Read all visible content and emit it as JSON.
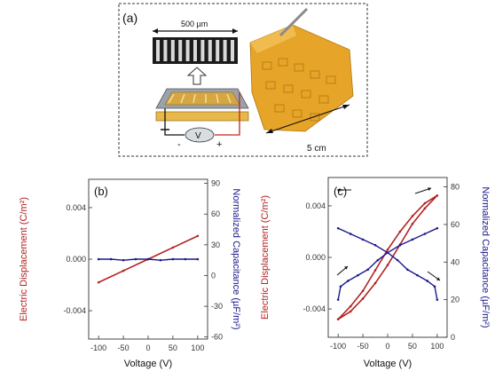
{
  "panel_a": {
    "label": "(a)",
    "scale_bar": "500 µm",
    "voltage_symbol": "V",
    "minus": "-",
    "plus": "+",
    "size_bar": "5 cm"
  },
  "colors": {
    "displacement": "#b22222",
    "capacitance": "#1a1a8c",
    "axis": "#333333"
  },
  "chart_data": [
    {
      "type": "line",
      "panel_label": "(b)",
      "xlabel": "Voltage (V)",
      "ylabel_left": "Electric Displacement (C/m²)",
      "ylabel_right": "Normalized Capacitance (µF/m²)",
      "xlim": [
        -120,
        120
      ],
      "ylim_left": [
        -0.0062,
        0.0062
      ],
      "ylim_right": [
        -62,
        94
      ],
      "x_ticks": [
        "-100",
        "-50",
        "0",
        "50",
        "100"
      ],
      "y_ticks_left": [
        "0.004",
        "0.000",
        "-0.004"
      ],
      "y_ticks_right": [
        "90",
        "60",
        "30",
        "0",
        "-30",
        "-60"
      ],
      "series": [
        {
          "axis": "left",
          "color": "#b22222",
          "x": [
            -100,
            -50,
            0,
            50,
            100
          ],
          "y": [
            -0.0018,
            -0.0009,
            0.0,
            0.0009,
            0.0018
          ]
        },
        {
          "axis": "right",
          "color": "#1a1a8c",
          "x": [
            -100,
            -75,
            -50,
            -25,
            0,
            25,
            50,
            75,
            100
          ],
          "y": [
            16,
            16,
            15,
            16,
            16,
            15,
            16,
            16,
            16
          ]
        }
      ]
    },
    {
      "type": "line",
      "panel_label": "(c)",
      "xlabel": "Voltage (V)",
      "ylabel_left": "Electric Displacement (C/m²)",
      "ylabel_right": "Normalized Capacitance (µF/m²)",
      "xlim": [
        -120,
        120
      ],
      "ylim_left": [
        -0.0062,
        0.0062
      ],
      "ylim_right": [
        0,
        85
      ],
      "x_ticks": [
        "-100",
        "-50",
        "0",
        "50",
        "100"
      ],
      "y_ticks_left": [
        "0.004",
        "0.000",
        "-0.004"
      ],
      "y_ticks_right": [
        "80",
        "60",
        "40",
        "20",
        "0"
      ],
      "series": [
        {
          "axis": "left",
          "color": "#b22222",
          "x": [
            -100,
            -75,
            -50,
            -25,
            0,
            25,
            50,
            75,
            100,
            75,
            50,
            25,
            0,
            -25,
            -50,
            -75,
            -100
          ],
          "y": [
            -0.0048,
            -0.0042,
            -0.0032,
            -0.002,
            -0.0006,
            0.001,
            0.0026,
            0.0038,
            0.0048,
            0.0042,
            0.0032,
            0.002,
            0.0006,
            -0.001,
            -0.0026,
            -0.0038,
            -0.0048
          ]
        },
        {
          "axis": "right",
          "color": "#1a1a8c",
          "x": [
            -100,
            -75,
            -50,
            -25,
            0,
            20,
            40,
            60,
            80,
            95,
            100
          ],
          "y": [
            58,
            55,
            52,
            49,
            45,
            41,
            36,
            33,
            30,
            27,
            20
          ]
        },
        {
          "axis": "right",
          "color": "#1a1a8c",
          "x": [
            -100,
            -95,
            -80,
            -60,
            -40,
            -20,
            0,
            25,
            50,
            75,
            100
          ],
          "y": [
            20,
            27,
            30,
            33,
            36,
            41,
            45,
            49,
            52,
            55,
            58
          ]
        }
      ]
    }
  ]
}
